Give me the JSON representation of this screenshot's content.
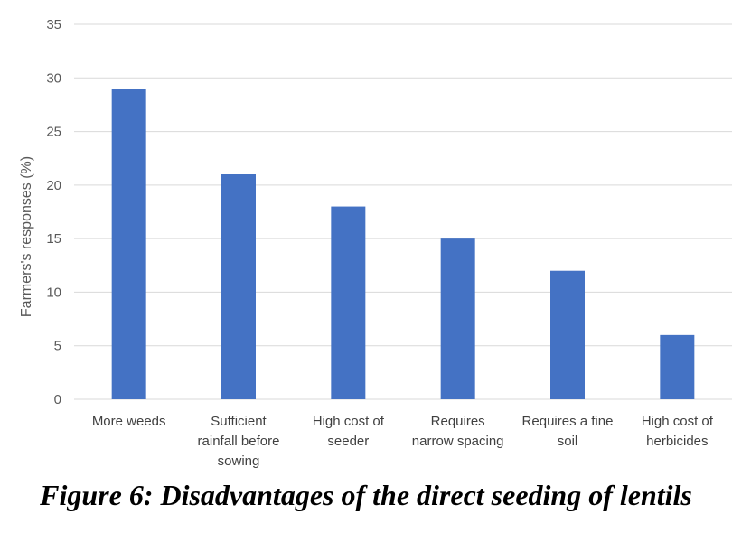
{
  "chart_data": {
    "type": "bar",
    "categories": [
      [
        "More weeds"
      ],
      [
        "Sufficient",
        "rainfall before",
        "sowing"
      ],
      [
        "High cost of",
        "seeder"
      ],
      [
        "Requires",
        "narrow spacing"
      ],
      [
        "Requires a fine",
        "soil"
      ],
      [
        "High cost of",
        "herbicides"
      ]
    ],
    "values": [
      29,
      21,
      18,
      15,
      12,
      6
    ],
    "ylabel": "Farmers's responses (%)",
    "ylim": [
      0,
      35
    ],
    "yticks": [
      0,
      5,
      10,
      15,
      20,
      25,
      30,
      35
    ],
    "grid": true,
    "bar_color": "#4472C4",
    "grid_color": "#D9D9D9"
  },
  "caption": "Figure 6: Disadvantages of the direct seeding of lentils"
}
